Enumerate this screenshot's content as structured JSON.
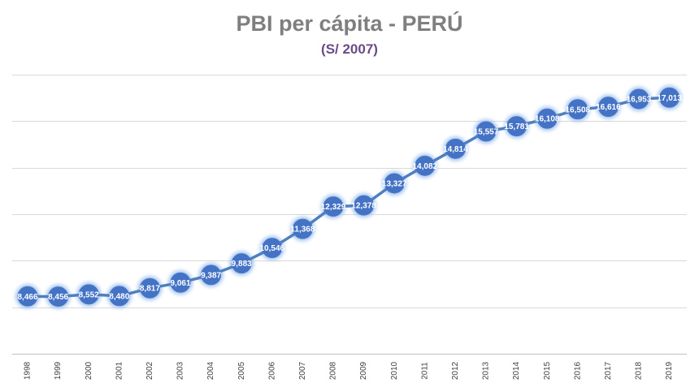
{
  "chart_data": {
    "type": "line",
    "title": "PBI per cápita - PERÚ",
    "subtitle": "(S/ 2007)",
    "xlabel": "",
    "ylabel": "",
    "categories": [
      "1998",
      "1999",
      "2000",
      "2001",
      "2002",
      "2003",
      "2004",
      "2005",
      "2006",
      "2007",
      "2008",
      "2009",
      "2010",
      "2011",
      "2012",
      "2013",
      "2014",
      "2015",
      "2016",
      "2017",
      "2018",
      "2019"
    ],
    "series": [
      {
        "values": [
          8466,
          8456,
          8552,
          8480,
          8817,
          9061,
          9387,
          9883,
          10546,
          11368,
          12329,
          12378,
          13327,
          14082,
          14814,
          15557,
          15781,
          16108,
          16508,
          16616,
          16953,
          17013
        ],
        "labels": [
          "8,466",
          "8,456",
          "8,552",
          "8,480",
          "8,817",
          "9,061",
          "9,387",
          "9,883",
          "10,546",
          "11,368",
          "12,329",
          "12,378",
          "13,327",
          "14,082",
          "14,814",
          "15,557",
          "15,781",
          "16,108",
          "16,508",
          "16,616",
          "16,953",
          "17,013"
        ]
      }
    ],
    "ylim": [
      6000,
      18000
    ],
    "grid": true,
    "legend": "none",
    "colors": {
      "line": "#4f7fc0",
      "marker": "#4472c4",
      "glow": "#9ec1ee",
      "title": "#7f7f7f",
      "subtitle": "#6b4a86"
    }
  }
}
